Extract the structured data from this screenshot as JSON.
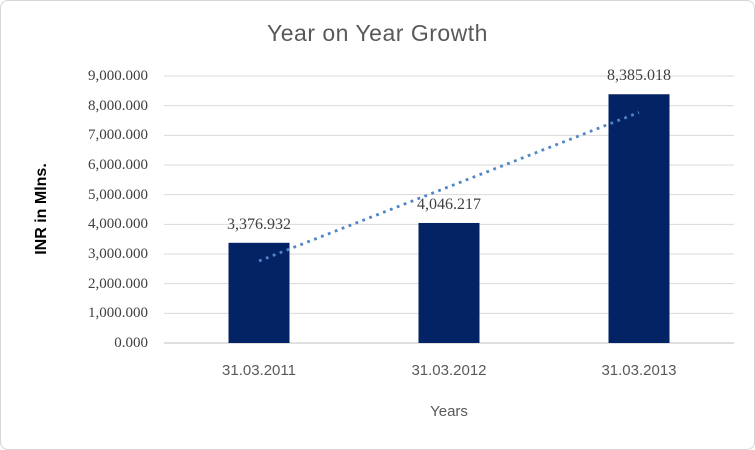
{
  "chart_data": {
    "type": "bar",
    "title": "Year on Year Growth",
    "xlabel": "Years",
    "ylabel": "INR in Mlns.",
    "categories": [
      "31.03.2011",
      "31.03.2012",
      "31.03.2013"
    ],
    "values": [
      3376.932,
      4046.217,
      8385.018
    ],
    "data_labels": [
      "3,376.932",
      "4,046.217",
      "8,385.018"
    ],
    "ylim": [
      0,
      9000
    ],
    "y_tick_step": 1000,
    "y_tick_labels": [
      "0.000",
      "1,000.000",
      "2,000.000",
      "3,000.000",
      "4,000.000",
      "5,000.000",
      "6,000.000",
      "7,000.000",
      "8,000.000",
      "9,000.000"
    ],
    "grid": true,
    "legend": false,
    "trendline": {
      "type": "linear",
      "style": "dotted",
      "start_value": 2765.3,
      "end_value": 7773.4
    },
    "colors": {
      "bar": "#032364",
      "trendline": "#4f86c6",
      "gridline": "#d9d9d9",
      "axis_line": "#bfbfbf",
      "title_text": "#595959",
      "axis_text": "#595959",
      "number_text": "#404040",
      "y_axis_title_text": "#000000"
    }
  }
}
